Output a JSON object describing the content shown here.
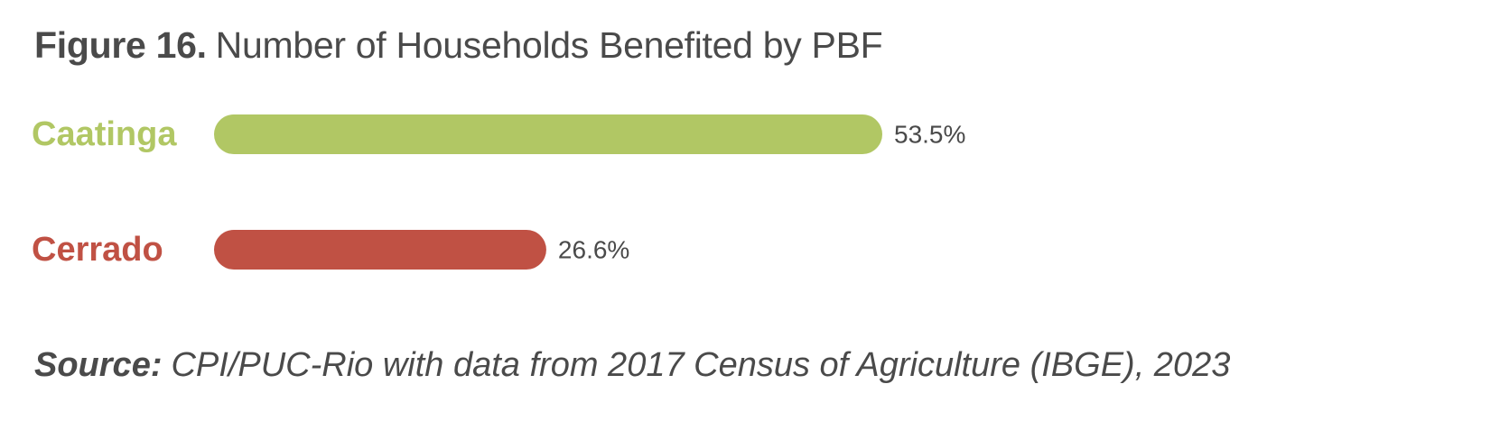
{
  "figure": {
    "label": "Figure 16.",
    "title": "Number of Households Benefited by PBF"
  },
  "source": {
    "label": "Source:",
    "text": "CPI/PUC-Rio with data from 2017 Census of Agriculture (IBGE), 2023"
  },
  "chart_data": {
    "type": "bar",
    "orientation": "horizontal",
    "title": "Number of Households Benefited by PBF",
    "categories": [
      "Caatinga",
      "Cerrado"
    ],
    "values": [
      53.5,
      26.6
    ],
    "value_labels": [
      "53.5%",
      "26.6%"
    ],
    "colors": [
      "#b1c764",
      "#c05144"
    ],
    "xlim": [
      0,
      100
    ],
    "grid": false,
    "legend": "none"
  }
}
